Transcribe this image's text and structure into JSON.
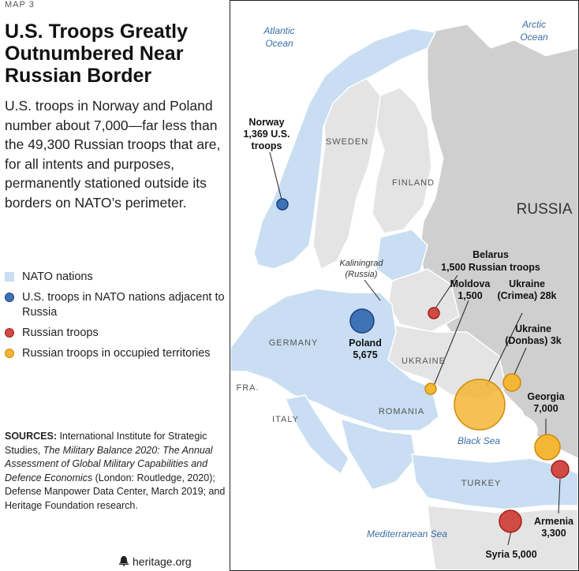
{
  "header": {
    "map_number": "MAP 3",
    "title_lines": [
      "U.S. Troops Greatly",
      "Outnumbered Near",
      "Russian Border"
    ],
    "description": "U.S. troops in Norway and Poland number about 7,000—far less than the 49,300 Russian troops that are, for all intents and purposes, permanently stationed outside its borders on NATO’s perimeter."
  },
  "legend": [
    {
      "label": "NATO nations",
      "symbol": "nato-square",
      "color": "#c9def3"
    },
    {
      "label": "U.S. troops in NATO nations adjacent to Russia",
      "symbol": "blue-circle",
      "color": "#3f73b8"
    },
    {
      "label": "Russian troops",
      "symbol": "red-circle",
      "color": "#cf4b43"
    },
    {
      "label": "Russian troops in occupied territories",
      "symbol": "orange-circle",
      "color": "#f3b635"
    }
  ],
  "sources": {
    "prefix": "SOURCES:",
    "text1": " International Institute for Strategic Studies, ",
    "italic1": "The Military Balance 2020: The Annual Assessment of Global Military Capabilities and Defence Economics",
    "text2": " (London: Routledge, 2020); Defense Manpower Data Center, March 2019; and Heritage Foundation research."
  },
  "footer": {
    "text": "heritage.org",
    "icon": "bell-icon"
  },
  "map": {
    "oceans": {
      "atlantic_1": "Atlantic",
      "atlantic_2": "Ocean",
      "arctic_1": "Arctic",
      "arctic_2": "Ocean",
      "black_sea": "Black Sea",
      "mediterranean": "Mediterranean Sea"
    },
    "countries": {
      "russia": "RUSSIA",
      "sweden": "SWEDEN",
      "finland": "FINLAND",
      "germany": "GERMANY",
      "ukraine": "UKRAINE",
      "romania": "ROMANIA",
      "italy": "ITALY",
      "turkey": "TURKEY",
      "france": "FRA.",
      "kaliningrad_1": "Kaliningrad",
      "kaliningrad_2": "(Russia)"
    },
    "troops": {
      "norway": {
        "line1": "Norway",
        "line2": "1,369 U.S.",
        "line3": "troops",
        "type": "us"
      },
      "poland": {
        "line1": "Poland",
        "line2": "5,675",
        "type": "us"
      },
      "belarus": {
        "line1": "Belarus",
        "line2": "1,500 Russian troops",
        "type": "russian"
      },
      "moldova": {
        "line1": "Moldova",
        "line2": "1,500",
        "type": "occupied"
      },
      "crimea": {
        "line1": "Ukraine",
        "line2": "(Crimea) 28k",
        "type": "occupied"
      },
      "donbas": {
        "line1": "Ukraine",
        "line2": "(Donbas) 3k",
        "type": "occupied"
      },
      "georgia": {
        "line1": "Georgia",
        "line2": "7,000",
        "type": "occupied"
      },
      "armenia": {
        "line1": "Armenia",
        "line2": "3,300",
        "type": "russian"
      },
      "syria": {
        "line1": "Syria 5,000",
        "type": "russian"
      }
    },
    "colors": {
      "nato": "#c9def3",
      "non_nato": "#e4e4e4",
      "russia": "#cfcfcf",
      "water": "#ffffff",
      "us": "#3f73b8",
      "russian": "#cf4b43",
      "occupied": "#f3b635"
    }
  }
}
